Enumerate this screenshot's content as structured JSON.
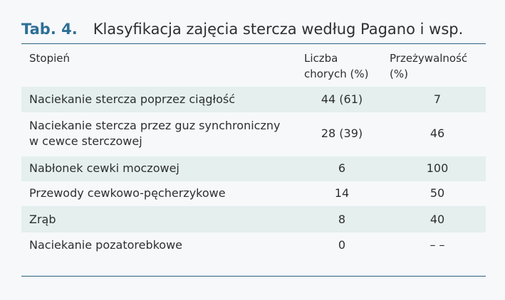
{
  "table": {
    "label": "Tab. 4.",
    "title": "Klasyfikacja zajęcia stercza według Pagano i wsp.",
    "headers": {
      "stage": "Stopień",
      "count_line1": "Liczba",
      "count_line2": "chorych (%)",
      "survival_line1": "Przeżywalność",
      "survival_line2": "(%)"
    },
    "rows": [
      {
        "stage_line1": "Naciekanie stercza poprzez ciągłość",
        "stage_line2": "",
        "count": "44 (61)",
        "survival": "7"
      },
      {
        "stage_line1": "Naciekanie stercza przez guz synchroniczny",
        "stage_line2": "w cewce sterczowej",
        "count": "28 (39)",
        "survival": "46"
      },
      {
        "stage_line1": "Nabłonek cewki moczowej",
        "stage_line2": "",
        "count": "6",
        "survival": "100"
      },
      {
        "stage_line1": "Przewody cewkowo-pęcherzykowe",
        "stage_line2": "",
        "count": "14",
        "survival": "50"
      },
      {
        "stage_line1": "Zrąb",
        "stage_line2": "",
        "count": "8",
        "survival": "40"
      },
      {
        "stage_line1": "Naciekanie pozatorebkowe",
        "stage_line2": "",
        "count": "0",
        "survival": "– –"
      }
    ]
  }
}
